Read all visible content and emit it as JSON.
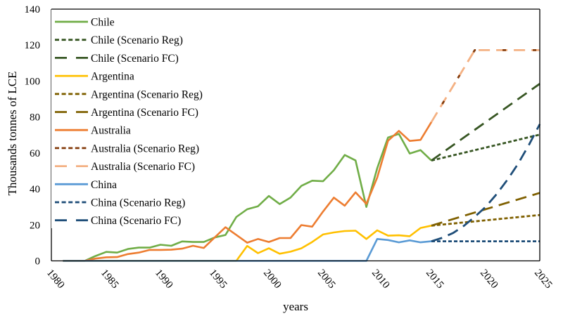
{
  "chart_data": {
    "type": "line",
    "title": "",
    "xlabel": "years",
    "ylabel": "Thousands tonnes of LCE",
    "xlim": [
      1980,
      2025
    ],
    "ylim": [
      0,
      140
    ],
    "x_ticks": [
      1980,
      1985,
      1990,
      1995,
      2000,
      2005,
      2010,
      2015,
      2020,
      2025
    ],
    "y_ticks": [
      0,
      20,
      40,
      60,
      80,
      100,
      120,
      140
    ],
    "grid": false,
    "legend_position": "top-left",
    "series": [
      {
        "name": "Chile",
        "style": "solid",
        "color": "#70ad47",
        "x": [
          1981,
          1982,
          1983,
          1984,
          1985,
          1986,
          1987,
          1988,
          1989,
          1990,
          1991,
          1992,
          1993,
          1994,
          1995,
          1996,
          1997,
          1998,
          1999,
          2000,
          2001,
          2002,
          2003,
          2004,
          2005,
          2006,
          2007,
          2008,
          2009,
          2010,
          2011,
          2012,
          2013,
          2014,
          2015
        ],
        "y": [
          0,
          0,
          0,
          2.7,
          5.0,
          4.6,
          6.6,
          7.4,
          7.4,
          9.0,
          8.4,
          10.8,
          10.5,
          10.5,
          13.0,
          14.4,
          24.4,
          28.7,
          30.4,
          36.1,
          31.6,
          35.2,
          41.7,
          44.6,
          44.3,
          50.4,
          58.9,
          55.9,
          30.0,
          51.5,
          68.6,
          70.6,
          59.7,
          61.6,
          55.8
        ]
      },
      {
        "name": "Chile (Scenario Reg)",
        "style": "dotted",
        "color": "#375623",
        "x": [
          2015,
          2025
        ],
        "y": [
          55.8,
          70.2
        ]
      },
      {
        "name": "Chile (Scenario FC)",
        "style": "dashed",
        "color": "#375623",
        "x": [
          2015,
          2025
        ],
        "y": [
          55.8,
          98.5
        ]
      },
      {
        "name": "Argentina",
        "style": "solid",
        "color": "#ffc000",
        "x": [
          1981,
          1982,
          1983,
          1984,
          1985,
          1986,
          1987,
          1988,
          1989,
          1990,
          1991,
          1992,
          1993,
          1994,
          1995,
          1996,
          1997,
          1998,
          1999,
          2000,
          2001,
          2002,
          2003,
          2004,
          2005,
          2006,
          2007,
          2008,
          2009,
          2010,
          2011,
          2012,
          2013,
          2014,
          2015
        ],
        "y": [
          0,
          0,
          0,
          0,
          0,
          0,
          0,
          0,
          0,
          0,
          0,
          0,
          0,
          0,
          0,
          0,
          0,
          8.3,
          4.3,
          7.0,
          4.0,
          5.1,
          7.0,
          10.5,
          14.7,
          15.8,
          16.6,
          16.8,
          12.2,
          17.0,
          14.0,
          14.2,
          13.7,
          18.3,
          19.6
        ]
      },
      {
        "name": "Argentina (Scenario Reg)",
        "style": "dotted",
        "color": "#7f6000",
        "x": [
          2015,
          2025
        ],
        "y": [
          19.6,
          25.5
        ]
      },
      {
        "name": "Argentina (Scenario FC)",
        "style": "dashed",
        "color": "#7f6000",
        "x": [
          2015,
          2025
        ],
        "y": [
          19.6,
          37.8
        ]
      },
      {
        "name": "Australia",
        "style": "solid",
        "color": "#ed7d31",
        "x": [
          1981,
          1982,
          1983,
          1984,
          1985,
          1986,
          1987,
          1988,
          1989,
          1990,
          1991,
          1992,
          1993,
          1994,
          1995,
          1996,
          1997,
          1998,
          1999,
          2000,
          2001,
          2002,
          2003,
          2004,
          2005,
          2006,
          2007,
          2008,
          2009,
          2010,
          2011,
          2012,
          2013,
          2014,
          2015
        ],
        "y": [
          0,
          0,
          0,
          1.3,
          2.0,
          2.1,
          3.8,
          4.6,
          6.1,
          6.1,
          6.2,
          6.8,
          8.4,
          7.2,
          13.0,
          18.7,
          14.4,
          10.1,
          12.2,
          10.5,
          12.7,
          12.7,
          19.9,
          19.0,
          27.4,
          35.2,
          30.7,
          38.1,
          31.7,
          46.3,
          66.8,
          72.3,
          66.7,
          67.3,
          77.2
        ]
      },
      {
        "name": "Australia (Scenario Reg)",
        "style": "dotted",
        "color": "#843c0c",
        "x": [
          2015,
          2019,
          2025
        ],
        "y": [
          77.2,
          117.2,
          117.2
        ]
      },
      {
        "name": "Australia (Scenario FC)",
        "style": "dashed",
        "color": "#f4b183",
        "x": [
          2015,
          2019,
          2025
        ],
        "y": [
          77.2,
          117.2,
          117.2
        ]
      },
      {
        "name": "China",
        "style": "solid",
        "color": "#5b9bd5",
        "x": [
          1981,
          1982,
          1983,
          1984,
          1985,
          1986,
          1987,
          1988,
          1989,
          1990,
          1991,
          1992,
          1993,
          1994,
          1995,
          1996,
          1997,
          1998,
          1999,
          2000,
          2001,
          2002,
          2003,
          2004,
          2005,
          2006,
          2007,
          2008,
          2009,
          2010,
          2011,
          2012,
          2013,
          2014,
          2015
        ],
        "y": [
          0,
          0,
          0,
          0,
          0,
          0,
          0,
          0,
          0,
          0,
          0,
          0,
          0,
          0,
          0,
          0,
          0,
          0,
          0,
          0,
          0,
          0,
          0,
          0,
          0,
          0,
          0,
          0,
          0,
          12.2,
          11.6,
          10.3,
          11.4,
          10.3,
          10.9
        ]
      },
      {
        "name": "China (Scenario Reg)",
        "style": "dotted",
        "color": "#1f4e79",
        "x": [
          2015,
          2025
        ],
        "y": [
          10.9,
          10.9
        ]
      },
      {
        "name": "China (Scenario FC)",
        "style": "dashed",
        "color": "#1f4e79",
        "x": [
          2015,
          2016,
          2017,
          2018,
          2019,
          2020,
          2021,
          2022,
          2023,
          2024,
          2025
        ],
        "y": [
          10.9,
          12.8,
          15.5,
          19.5,
          24.5,
          30.0,
          37.0,
          45.0,
          54.0,
          64.5,
          76.0
        ]
      }
    ]
  }
}
